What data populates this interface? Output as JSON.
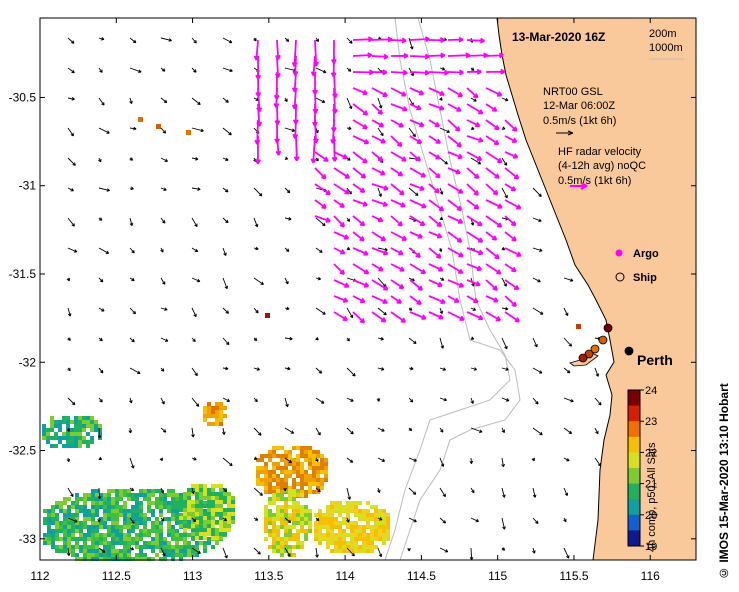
{
  "date_title": "13-Mar-2020 16Z",
  "scale_labels": [
    "200m",
    "1000m"
  ],
  "model_label": [
    "NRT00 GSL",
    "12-Mar 06:00Z",
    "0.5m/s (1kt 6h)"
  ],
  "radar_label": [
    "HF radar velocity",
    "(4-12h avg) noQC",
    "0.5m/s (1kt 6h)"
  ],
  "legend": {
    "argo": "Argo",
    "ship": "Ship"
  },
  "city_label": "Perth",
  "colorbar": {
    "label": "4h comp, p50, All Sats",
    "ticks": [
      "24",
      "23",
      "22",
      "21",
      "20",
      "19"
    ],
    "colors": [
      "#7a0000",
      "#d42000",
      "#f07000",
      "#f6c000",
      "#d6e020",
      "#7ccc30",
      "#20b060",
      "#10a0a0",
      "#1060d0",
      "#101890"
    ]
  },
  "credit": "IMOS 15-Mar-2020 13:10 Hobart",
  "copyright": "©",
  "axes": {
    "x_ticks": [
      "112",
      "112.5",
      "113",
      "113.5",
      "114",
      "114.5",
      "115",
      "115.5",
      "116"
    ],
    "y_ticks": [
      "-30.5",
      "-31",
      "-31.5",
      "-32",
      "-32.5",
      "-33"
    ],
    "x_range": [
      112,
      116.3
    ],
    "y_range": [
      -30.05,
      -33.12
    ]
  },
  "colors": {
    "land": "#f9c89b",
    "radar": "#ff00ff",
    "isobath": "#bbbbbb"
  }
}
